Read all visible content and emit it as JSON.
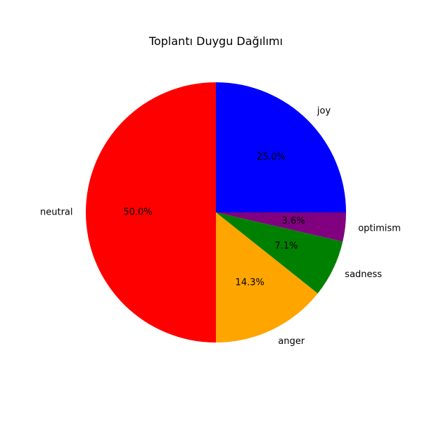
{
  "chart_data": {
    "type": "pie",
    "title": "Toplantı Duygu Dağılımı",
    "categories": [
      "joy",
      "optimism",
      "sadness",
      "anger",
      "neutral"
    ],
    "values": [
      25.0,
      3.6,
      7.1,
      14.3,
      50.0
    ],
    "value_labels": [
      "25.0%",
      "3.6%",
      "7.1%",
      "14.3%",
      "50.0%"
    ],
    "colors": [
      "#0000ff",
      "#800080",
      "#008000",
      "#ffa500",
      "#ff0000"
    ],
    "start_angle_deg": 90,
    "direction": "clockwise",
    "legend": "none"
  }
}
